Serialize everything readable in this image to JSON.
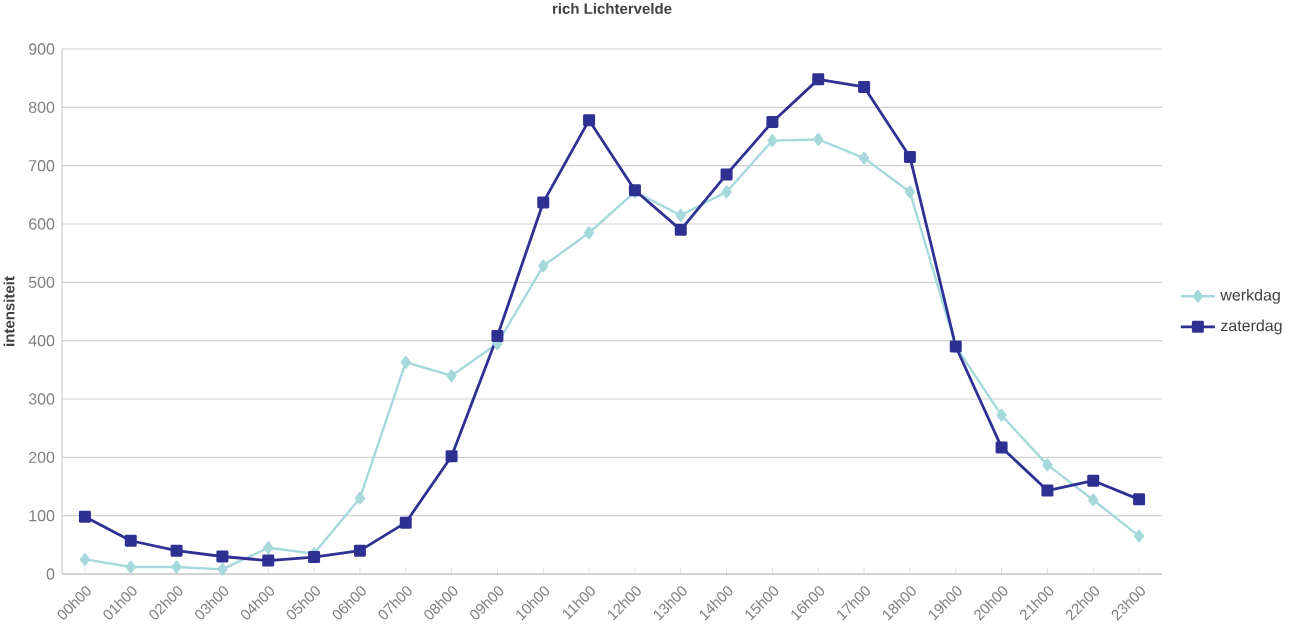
{
  "chart_data": {
    "type": "line",
    "title": "rich Lichtervelde",
    "ylabel": "intensiteit",
    "categories": [
      "00h00",
      "01h00",
      "02h00",
      "03h00",
      "04h00",
      "05h00",
      "06h00",
      "07h00",
      "08h00",
      "09h00",
      "10h00",
      "11h00",
      "12h00",
      "13h00",
      "14h00",
      "15h00",
      "16h00",
      "17h00",
      "18h00",
      "19h00",
      "20h00",
      "21h00",
      "22h00",
      "23h00"
    ],
    "series": [
      {
        "name": "werkdag",
        "color": "#a6d9dc",
        "marker": "diamond",
        "values": [
          25,
          12,
          12,
          8,
          45,
          35,
          130,
          363,
          340,
          395,
          528,
          585,
          655,
          615,
          655,
          743,
          745,
          713,
          655,
          390,
          272,
          187,
          127,
          65
        ]
      },
      {
        "name": "zaterdag",
        "color": "#2e3192",
        "marker": "square",
        "values": [
          98,
          57,
          40,
          30,
          23,
          29,
          40,
          88,
          202,
          408,
          637,
          778,
          658,
          590,
          685,
          775,
          848,
          835,
          715,
          390,
          217,
          143,
          160,
          128
        ]
      }
    ],
    "ylim": [
      0,
      900
    ],
    "yticks": [
      0,
      100,
      200,
      300,
      400,
      500,
      600,
      700,
      800,
      900
    ],
    "grid": "y",
    "legend": "right",
    "line_style": "solid"
  }
}
